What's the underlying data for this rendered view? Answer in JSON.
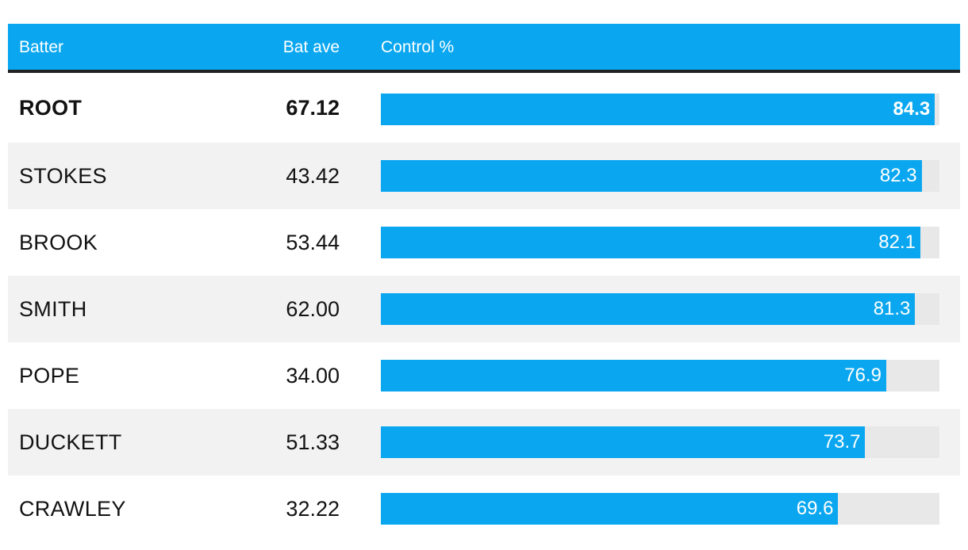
{
  "colors": {
    "accent": "#0aa7f0",
    "header_text": "#ffffff",
    "track": "#e8e8e8",
    "row_shade": "#f2f2f2",
    "rule": "#222222"
  },
  "header": {
    "batter": "Batter",
    "bat_ave": "Bat ave",
    "control": "Control %"
  },
  "chart_data": {
    "type": "table",
    "columns": [
      "Batter",
      "Bat ave",
      "Control %"
    ],
    "bar_column": "Control %",
    "bar_max": 85,
    "highlighted_row": "ROOT",
    "rows": [
      {
        "batter": "ROOT",
        "bat_ave": "67.12",
        "control": 84.3,
        "control_label": "84.3"
      },
      {
        "batter": "STOKES",
        "bat_ave": "43.42",
        "control": 82.3,
        "control_label": "82.3"
      },
      {
        "batter": "BROOK",
        "bat_ave": "53.44",
        "control": 82.1,
        "control_label": "82.1"
      },
      {
        "batter": "SMITH",
        "bat_ave": "62.00",
        "control": 81.3,
        "control_label": "81.3"
      },
      {
        "batter": "POPE",
        "bat_ave": "34.00",
        "control": 76.9,
        "control_label": "76.9"
      },
      {
        "batter": "DUCKETT",
        "bat_ave": "51.33",
        "control": 73.7,
        "control_label": "73.7"
      },
      {
        "batter": "CRAWLEY",
        "bat_ave": "32.22",
        "control": 69.6,
        "control_label": "69.6"
      }
    ]
  }
}
